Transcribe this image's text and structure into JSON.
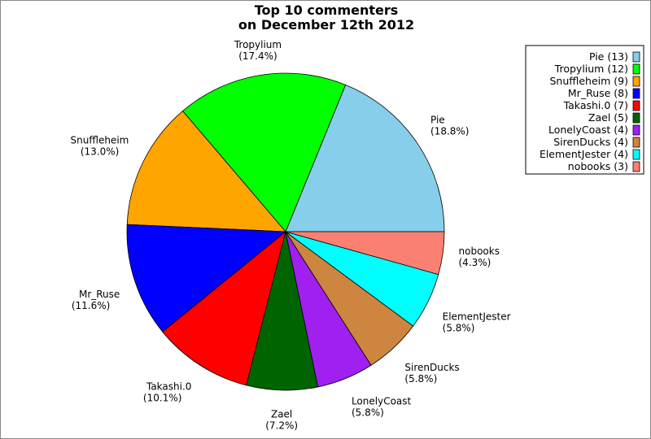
{
  "chart_data": {
    "type": "pie",
    "title_lines": [
      "Top 10 commenters",
      "on December 12th 2012"
    ],
    "start_angle_deg": 0,
    "direction": "counterclockwise",
    "legend_placement": "top-right",
    "slices": [
      {
        "name": "Pie",
        "value": 13,
        "percent": "18.8%",
        "legend": "Pie (13)",
        "color": "#87CEEB"
      },
      {
        "name": "Tropylium",
        "value": 12,
        "percent": "17.4%",
        "legend": "Tropylium (12)",
        "color": "#00FF00"
      },
      {
        "name": "Snuffleheim",
        "value": 9,
        "percent": "13.0%",
        "legend": "Snuffleheim (9)",
        "color": "#FFA500"
      },
      {
        "name": "Mr_Ruse",
        "value": 8,
        "percent": "11.6%",
        "legend": "Mr_Ruse (8)",
        "color": "#0000FF"
      },
      {
        "name": "Takashi.0",
        "value": 7,
        "percent": "10.1%",
        "legend": "Takashi.0 (7)",
        "color": "#FF0000"
      },
      {
        "name": "Zael",
        "value": 5,
        "percent": "7.2%",
        "legend": "Zael (5)",
        "color": "#006400"
      },
      {
        "name": "LonelyCoast",
        "value": 4,
        "percent": "5.8%",
        "legend": "LonelyCoast (4)",
        "color": "#A020F0"
      },
      {
        "name": "SirenDucks",
        "value": 4,
        "percent": "5.8%",
        "legend": "SirenDucks (4)",
        "color": "#CD853F"
      },
      {
        "name": "ElementJester",
        "value": 4,
        "percent": "5.8%",
        "legend": "ElementJester (4)",
        "color": "#00FFFF"
      },
      {
        "name": "nobooks",
        "value": 3,
        "percent": "4.3%",
        "legend": "nobooks (3)",
        "color": "#FA8072"
      }
    ]
  }
}
